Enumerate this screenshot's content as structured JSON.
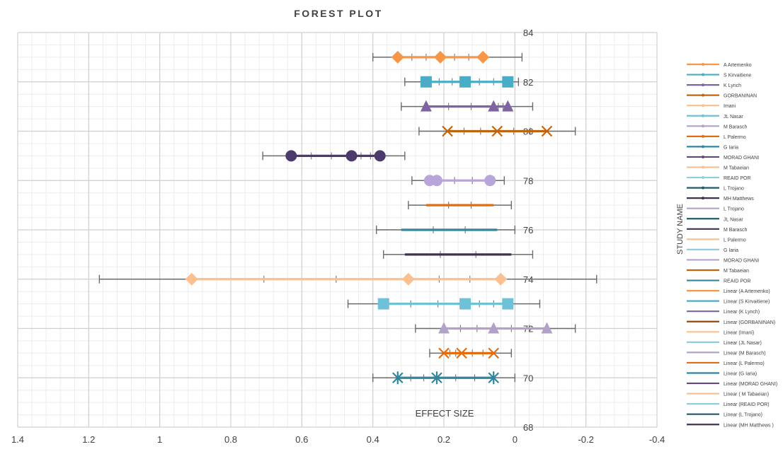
{
  "chart_data": {
    "type": "scatter",
    "title": "FOREST PLOT",
    "xlabel": "EFFECT SIZE",
    "ylabel": "STUDY NAME",
    "x_reversed": true,
    "xlim": [
      -0.4,
      1.4
    ],
    "ylim": [
      68,
      84
    ],
    "x_ticks": [
      1.4,
      1.2,
      1,
      0.8,
      0.6,
      0.4,
      0.2,
      0,
      -0.2,
      -0.4
    ],
    "y_ticks": [
      68,
      70,
      72,
      74,
      76,
      78,
      80,
      82,
      84
    ],
    "grid": true,
    "legend_position": "right",
    "series": [
      {
        "name": "A Artemenko",
        "color": "#F79646",
        "marker": "diamond",
        "y": 83,
        "points": [
          0.33,
          0.21,
          0.09
        ],
        "ci": [
          0.4,
          -0.02
        ]
      },
      {
        "name": "S Kirvaitiene",
        "color": "#4BACC6",
        "marker": "square",
        "y": 82,
        "points": [
          0.25,
          0.14,
          0.02
        ],
        "ci": [
          0.31,
          -0.01
        ]
      },
      {
        "name": "K Lynch",
        "color": "#8064A2",
        "marker": "triangle",
        "y": 81,
        "points": [
          0.25,
          0.06,
          0.02
        ],
        "ci": [
          0.32,
          -0.05
        ]
      },
      {
        "name": "GORBANINAN",
        "color": "#C0650F",
        "marker": "x",
        "y": 80,
        "points": [
          0.19,
          0.05,
          -0.09
        ],
        "ci": [
          0.27,
          -0.17
        ]
      },
      {
        "name": "MH Matthews",
        "color": "#4B3A6B",
        "marker": "circle",
        "y": 79,
        "points": [
          0.63,
          0.46,
          0.38
        ],
        "ci": [
          0.71,
          0.31
        ]
      },
      {
        "name": "L Trojano",
        "color": "#B8A6D9",
        "marker": "circle",
        "y": 78,
        "points": [
          0.24,
          0.22,
          0.07
        ],
        "ci": [
          0.29,
          0.03
        ]
      },
      {
        "name": "M Tabaeian",
        "color": "#E46C0A",
        "marker": "none",
        "y": 77,
        "points": [
          0.25,
          0.06
        ],
        "ci": [
          0.3,
          0.01
        ]
      },
      {
        "name": "REAID POR",
        "color": "#31859C",
        "marker": "none",
        "y": 76,
        "points": [
          0.32,
          0.05
        ],
        "ci": [
          0.39,
          0.0
        ]
      },
      {
        "name": "M Barasch",
        "color": "#403152",
        "marker": "none",
        "y": 75,
        "points": [
          0.31,
          0.01
        ],
        "ci": [
          0.37,
          -0.05
        ]
      },
      {
        "name": "Imani",
        "color": "#FAC090",
        "marker": "diamond",
        "y": 74,
        "points": [
          0.91,
          0.3,
          0.04
        ],
        "ci": [
          1.17,
          -0.23
        ]
      },
      {
        "name": "JL Nasar",
        "color": "#6FC1D6",
        "marker": "square",
        "y": 73,
        "points": [
          0.37,
          0.14,
          0.02
        ],
        "ci": [
          0.47,
          -0.07
        ]
      },
      {
        "name": "M Barasch",
        "color": "#B3A2C7",
        "marker": "triangle",
        "y": 72,
        "points": [
          0.2,
          0.06,
          -0.09
        ],
        "ci": [
          0.28,
          -0.17
        ]
      },
      {
        "name": "L Palermo",
        "color": "#E46C0A",
        "marker": "x",
        "y": 71,
        "points": [
          0.2,
          0.15,
          0.06
        ],
        "ci": [
          0.24,
          0.01
        ]
      },
      {
        "name": "G Iaria",
        "color": "#31859C",
        "marker": "asterisk",
        "y": 70,
        "points": [
          0.33,
          0.22,
          0.06
        ],
        "ci": [
          0.4,
          0.0
        ]
      }
    ],
    "legend": [
      {
        "label": "A Artemenko",
        "color": "#F79646",
        "marker": true
      },
      {
        "label": "S Kirvaitiene",
        "color": "#4BACC6",
        "marker": true
      },
      {
        "label": "K Lynch",
        "color": "#8064A2",
        "marker": true
      },
      {
        "label": "GORBANINAN",
        "color": "#C0650F",
        "marker": true
      },
      {
        "label": "Imani",
        "color": "#FAC090",
        "marker": true
      },
      {
        "label": "JL Nasar",
        "color": "#6FC1D6",
        "marker": true
      },
      {
        "label": "M Barasch",
        "color": "#B3A2C7",
        "marker": true
      },
      {
        "label": "L Palermo",
        "color": "#E46C0A",
        "marker": true
      },
      {
        "label": "G Iaria",
        "color": "#31859C",
        "marker": true
      },
      {
        "label": "MORAD GHANI",
        "color": "#60497A",
        "marker": true
      },
      {
        "label": " M Tabaeian",
        "color": "#FAC090",
        "marker": true
      },
      {
        "label": "REAID POR",
        "color": "#93CDDD",
        "marker": true
      },
      {
        "label": "L Trojano",
        "color": "#215968",
        "marker": true
      },
      {
        "label": "MH Matthews",
        "color": "#403152",
        "marker": true
      },
      {
        "label": "L Trojano",
        "color": "#B3A2C7",
        "marker": false
      },
      {
        "label": "JL Nasar",
        "color": "#215968",
        "marker": false
      },
      {
        "label": "M Barasch",
        "color": "#403152",
        "marker": false
      },
      {
        "label": "L Palermo",
        "color": "#FAC090",
        "marker": false
      },
      {
        "label": "G Iaria",
        "color": "#93CDDD",
        "marker": false
      },
      {
        "label": "MORAD GHANI",
        "color": "#B3A2C7",
        "marker": false
      },
      {
        "label": " M Tabaeian",
        "color": "#C0650F",
        "marker": false
      },
      {
        "label": "REAID POR",
        "color": "#31859C",
        "marker": false
      },
      {
        "label": "Linear (A Artemenko)",
        "color": "#F79646",
        "marker": false
      },
      {
        "label": "Linear (S Kirvaitiene)",
        "color": "#4BACC6",
        "marker": false
      },
      {
        "label": "Linear (K Lynch)",
        "color": "#8064A2",
        "marker": false
      },
      {
        "label": "Linear (GORBANINAN)",
        "color": "#984807",
        "marker": false
      },
      {
        "label": "Linear (Imani)",
        "color": "#FAC090",
        "marker": false
      },
      {
        "label": "Linear (JL Nasar)",
        "color": "#93CDDD",
        "marker": false
      },
      {
        "label": "Linear (M Barasch)",
        "color": "#B3A2C7",
        "marker": false
      },
      {
        "label": "Linear (L Palermo)",
        "color": "#E46C0A",
        "marker": false
      },
      {
        "label": "Linear (G Iaria)",
        "color": "#31859C",
        "marker": false
      },
      {
        "label": "Linear (MORAD GHANI)",
        "color": "#60497A",
        "marker": false
      },
      {
        "label": "Linear ( M Tabaeian)",
        "color": "#FAC090",
        "marker": false
      },
      {
        "label": "Linear (REAID POR)",
        "color": "#93CDDD",
        "marker": false
      },
      {
        "label": "Linear (L Trojano)",
        "color": "#215968",
        "marker": false
      },
      {
        "label": "Linear (MH Matthews )",
        "color": "#403152",
        "marker": false
      }
    ]
  }
}
